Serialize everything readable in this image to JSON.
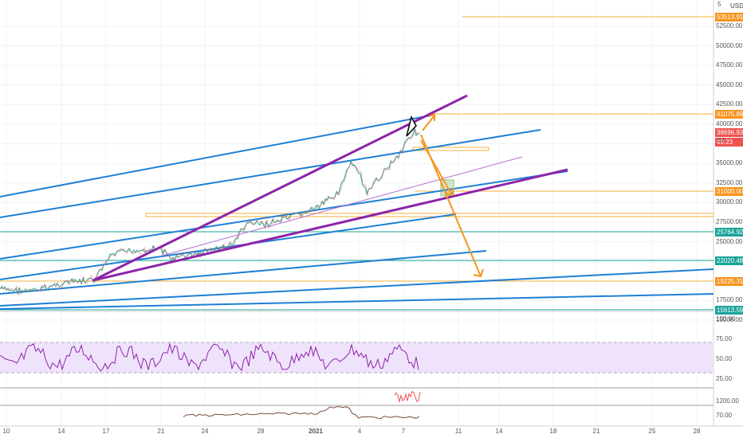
{
  "currency": "USD",
  "price_axis": {
    "ticks": [
      "52500.00",
      "50000.00",
      "47500.00",
      "45000.00",
      "42500.00",
      "40000.00",
      "37500.00",
      "35000.00",
      "32500.00",
      "30000.00",
      "27500.00",
      "25000.00",
      "22500.00",
      "20000.00",
      "17500.00",
      "15000.00"
    ],
    "top_fragment": "5"
  },
  "badges": [
    {
      "label": "53513.91",
      "color": "#f7941d"
    },
    {
      "label": "41075.89",
      "color": "#f7941d"
    },
    {
      "label": "38696.93",
      "color": "#ef5350"
    },
    {
      "label": "49:23",
      "color": "#ef5350"
    },
    {
      "label": "31000.00",
      "color": "#f7941d"
    },
    {
      "label": "25764.92",
      "color": "#1aa39a"
    },
    {
      "label": "22020.48",
      "color": "#1aa39a"
    },
    {
      "label": "19225.31",
      "color": "#f7941d"
    },
    {
      "label": "15613.59",
      "color": "#1aa39a"
    }
  ],
  "partial_label": "37",
  "rsi_axis": [
    "100.00",
    "75.00",
    "50.00",
    "25.00"
  ],
  "vol_axis": [
    "1200.00",
    "70.00"
  ],
  "time_axis": [
    "10",
    "14",
    "17",
    "21",
    "24",
    "28",
    "2021",
    "4",
    "7",
    "11",
    "14",
    "18",
    "21",
    "25",
    "28"
  ]
}
